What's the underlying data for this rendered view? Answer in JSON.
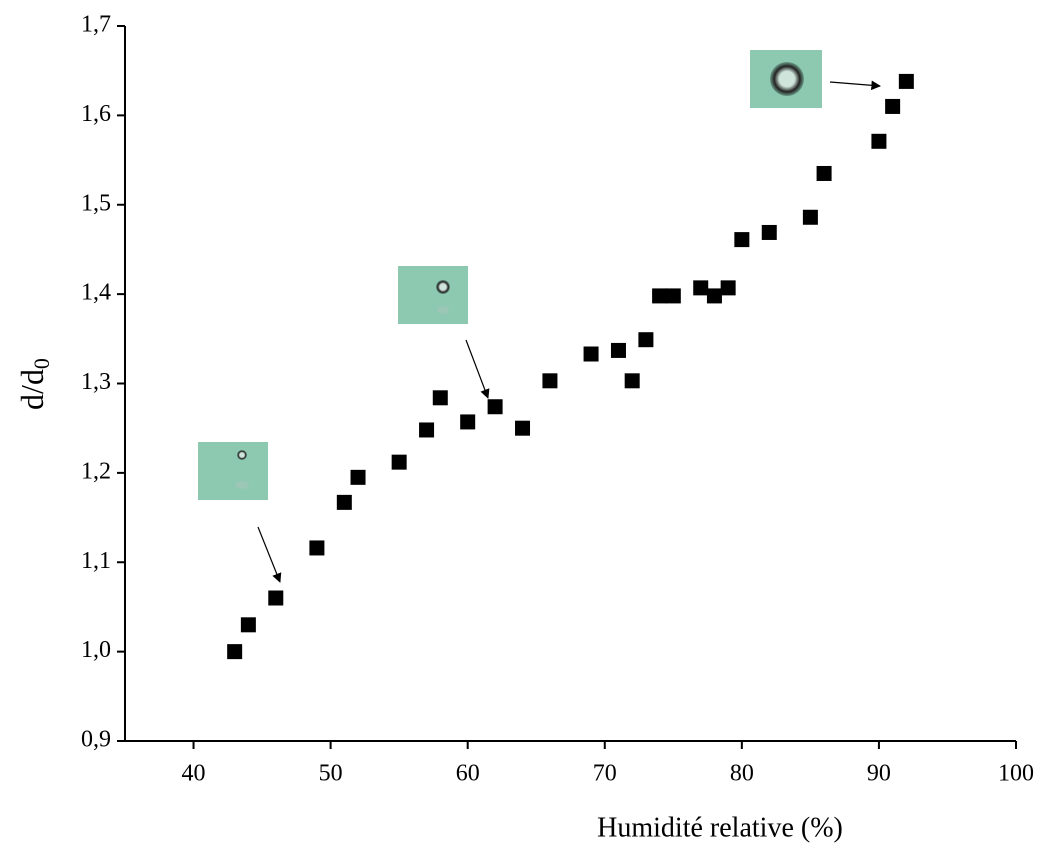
{
  "chart_data": {
    "type": "scatter",
    "x_label": "Humidité relative (%)",
    "y_label": "d/d",
    "y_label_subscript": "0",
    "x": [
      43,
      44,
      46,
      49,
      51,
      52,
      55,
      57,
      58,
      60,
      62,
      64,
      66,
      69,
      71,
      72,
      73,
      74,
      75,
      77,
      78,
      79,
      80,
      82,
      85,
      86,
      90,
      91,
      92
    ],
    "series": [
      {
        "color": "#000000",
        "values": [
          1.0,
          1.03,
          1.06,
          1.116,
          1.167,
          1.195,
          1.212,
          1.248,
          1.284,
          1.257,
          1.274,
          1.25,
          1.303,
          1.333,
          1.337,
          1.303,
          1.349,
          1.398,
          1.398,
          1.407,
          1.398,
          1.407,
          1.461,
          1.469,
          1.486,
          1.535,
          1.571,
          1.61,
          1.638
        ]
      }
    ],
    "xlim": [
      35,
      100
    ],
    "xticks": [
      40,
      50,
      60,
      70,
      80,
      90,
      100
    ],
    "ylim": [
      0.9,
      1.7
    ],
    "yticks": [
      {
        "value": 0.9,
        "label": "0,9"
      },
      {
        "value": 1.0,
        "label": "1,0"
      },
      {
        "value": 1.1,
        "label": "1,1"
      },
      {
        "value": 1.2,
        "label": "1,2"
      },
      {
        "value": 1.3,
        "label": "1,3"
      },
      {
        "value": 1.4,
        "label": "1,4"
      },
      {
        "value": 1.5,
        "label": "1,5"
      },
      {
        "value": 1.6,
        "label": "1,6"
      },
      {
        "value": 1.7,
        "label": "1,7"
      }
    ]
  }
}
